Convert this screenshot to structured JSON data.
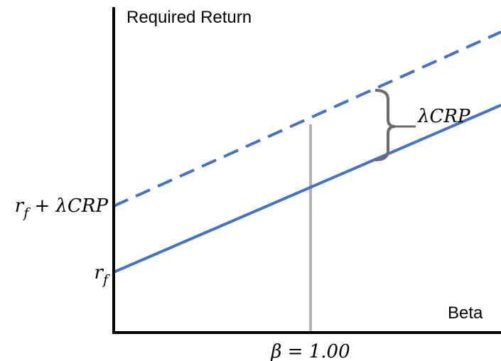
{
  "y_axis_label": "Required Return",
  "x_axis_label": "Beta",
  "upper_intercept": {
    "base": "r",
    "sub": "f",
    "rest": " + λCRP"
  },
  "lower_intercept": {
    "base": "r",
    "sub": "f"
  },
  "gap_label": "λCRP",
  "beta_marker": "β = 1.00"
}
